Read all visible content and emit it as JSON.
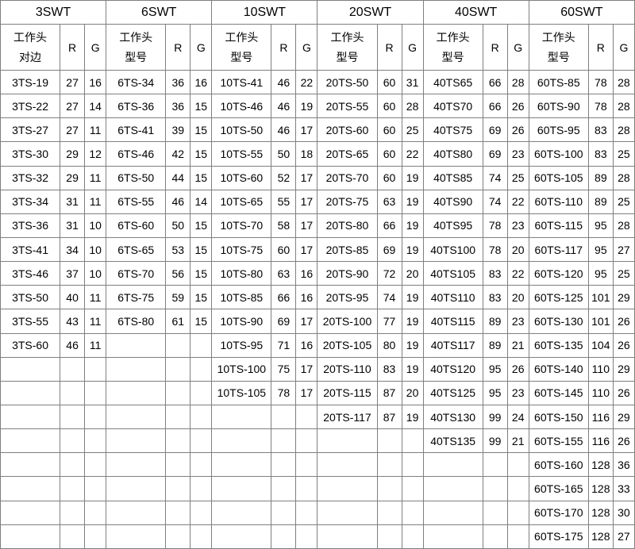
{
  "table": {
    "row_count": 20,
    "groups": [
      {
        "title": "3SWT",
        "header_line1": "工作头",
        "header_line2": "对边",
        "r_label": "R",
        "g_label": "G",
        "rows": [
          [
            "3TS-19",
            "27",
            "16"
          ],
          [
            "3TS-22",
            "27",
            "14"
          ],
          [
            "3TS-27",
            "27",
            "11"
          ],
          [
            "3TS-30",
            "29",
            "12"
          ],
          [
            "3TS-32",
            "29",
            "11"
          ],
          [
            "3TS-34",
            "31",
            "11"
          ],
          [
            "3TS-36",
            "31",
            "10"
          ],
          [
            "3TS-41",
            "34",
            "10"
          ],
          [
            "3TS-46",
            "37",
            "10"
          ],
          [
            "3TS-50",
            "40",
            "11"
          ],
          [
            "3TS-55",
            "43",
            "11"
          ],
          [
            "3TS-60",
            "46",
            "11"
          ]
        ]
      },
      {
        "title": "6SWT",
        "header_line1": "工作头",
        "header_line2": "型号",
        "r_label": "R",
        "g_label": "G",
        "rows": [
          [
            "6TS-34",
            "36",
            "16"
          ],
          [
            "6TS-36",
            "36",
            "15"
          ],
          [
            "6TS-41",
            "39",
            "15"
          ],
          [
            "6TS-46",
            "42",
            "15"
          ],
          [
            "6TS-50",
            "44",
            "15"
          ],
          [
            "6TS-55",
            "46",
            "14"
          ],
          [
            "6TS-60",
            "50",
            "15"
          ],
          [
            "6TS-65",
            "53",
            "15"
          ],
          [
            "6TS-70",
            "56",
            "15"
          ],
          [
            "6TS-75",
            "59",
            "15"
          ],
          [
            "6TS-80",
            "61",
            "15"
          ]
        ]
      },
      {
        "title": "10SWT",
        "header_line1": "工作头",
        "header_line2": "型号",
        "r_label": "R",
        "g_label": "G",
        "rows": [
          [
            "10TS-41",
            "46",
            "22"
          ],
          [
            "10TS-46",
            "46",
            "19"
          ],
          [
            "10TS-50",
            "46",
            "17"
          ],
          [
            "10TS-55",
            "50",
            "18"
          ],
          [
            "10TS-60",
            "52",
            "17"
          ],
          [
            "10TS-65",
            "55",
            "17"
          ],
          [
            "10TS-70",
            "58",
            "17"
          ],
          [
            "10TS-75",
            "60",
            "17"
          ],
          [
            "10TS-80",
            "63",
            "16"
          ],
          [
            "10TS-85",
            "66",
            "16"
          ],
          [
            "10TS-90",
            "69",
            "17"
          ],
          [
            "10TS-95",
            "71",
            "16"
          ],
          [
            "10TS-100",
            "75",
            "17"
          ],
          [
            "10TS-105",
            "78",
            "17"
          ]
        ]
      },
      {
        "title": "20SWT",
        "header_line1": "工作头",
        "header_line2": "型号",
        "r_label": "R",
        "g_label": "G",
        "rows": [
          [
            "20TS-50",
            "60",
            "31"
          ],
          [
            "20TS-55",
            "60",
            "28"
          ],
          [
            "20TS-60",
            "60",
            "25"
          ],
          [
            "20TS-65",
            "60",
            "22"
          ],
          [
            "20TS-70",
            "60",
            "19"
          ],
          [
            "20TS-75",
            "63",
            "19"
          ],
          [
            "20TS-80",
            "66",
            "19"
          ],
          [
            "20TS-85",
            "69",
            "19"
          ],
          [
            "20TS-90",
            "72",
            "20"
          ],
          [
            "20TS-95",
            "74",
            "19"
          ],
          [
            "20TS-100",
            "77",
            "19"
          ],
          [
            "20TS-105",
            "80",
            "19"
          ],
          [
            "20TS-110",
            "83",
            "19"
          ],
          [
            "20TS-115",
            "87",
            "20"
          ],
          [
            "20TS-117",
            "87",
            "19"
          ]
        ]
      },
      {
        "title": "40SWT",
        "header_line1": "工作头",
        "header_line2": "型号",
        "r_label": "R",
        "g_label": "G",
        "rows": [
          [
            "40TS65",
            "66",
            "28"
          ],
          [
            "40TS70",
            "66",
            "26"
          ],
          [
            "40TS75",
            "69",
            "26"
          ],
          [
            "40TS80",
            "69",
            "23"
          ],
          [
            "40TS85",
            "74",
            "25"
          ],
          [
            "40TS90",
            "74",
            "22"
          ],
          [
            "40TS95",
            "78",
            "23"
          ],
          [
            "40TS100",
            "78",
            "20"
          ],
          [
            "40TS105",
            "83",
            "22"
          ],
          [
            "40TS110",
            "83",
            "20"
          ],
          [
            "40TS115",
            "89",
            "23"
          ],
          [
            "40TS117",
            "89",
            "21"
          ],
          [
            "40TS120",
            "95",
            "26"
          ],
          [
            "40TS125",
            "95",
            "23"
          ],
          [
            "40TS130",
            "99",
            "24"
          ],
          [
            "40TS135",
            "99",
            "21"
          ]
        ]
      },
      {
        "title": "60SWT",
        "header_line1": "工作头",
        "header_line2": "型号",
        "r_label": "R",
        "g_label": "G",
        "rows": [
          [
            "60TS-85",
            "78",
            "28"
          ],
          [
            "60TS-90",
            "78",
            "28"
          ],
          [
            "60TS-95",
            "83",
            "28"
          ],
          [
            "60TS-100",
            "83",
            "25"
          ],
          [
            "60TS-105",
            "89",
            "28"
          ],
          [
            "60TS-110",
            "89",
            "25"
          ],
          [
            "60TS-115",
            "95",
            "28"
          ],
          [
            "60TS-117",
            "95",
            "27"
          ],
          [
            "60TS-120",
            "95",
            "25"
          ],
          [
            "60TS-125",
            "101",
            "29"
          ],
          [
            "60TS-130",
            "101",
            "26"
          ],
          [
            "60TS-135",
            "104",
            "26"
          ],
          [
            "60TS-140",
            "110",
            "29"
          ],
          [
            "60TS-145",
            "110",
            "26"
          ],
          [
            "60TS-150",
            "116",
            "29"
          ],
          [
            "60TS-155",
            "116",
            "26"
          ],
          [
            "60TS-160",
            "128",
            "36"
          ],
          [
            "60TS-165",
            "128",
            "33"
          ],
          [
            "60TS-170",
            "128",
            "30"
          ],
          [
            "60TS-175",
            "128",
            "27"
          ]
        ]
      }
    ]
  }
}
